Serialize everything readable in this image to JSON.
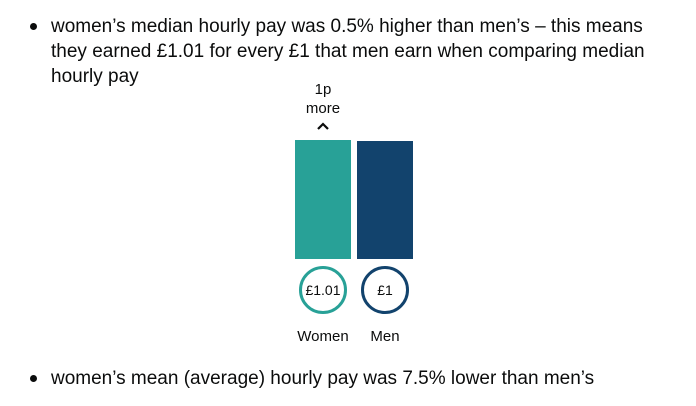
{
  "bullets": [
    "women’s median hourly pay was 0.5% higher than men’s – this means they earned £1.01 for every £1 that men earn when comparing median hourly pay",
    "women’s mean (average) hourly pay was 7.5% lower than men’s"
  ],
  "chart_data": {
    "type": "bar",
    "categories": [
      "Women",
      "Men"
    ],
    "values": [
      1.01,
      1.0
    ],
    "value_labels": [
      "£1.01",
      "£1"
    ],
    "difference_amount": "1p",
    "difference_word": "more",
    "colors": [
      "#28a197",
      "#12436d"
    ],
    "ylim": [
      0,
      1.05
    ]
  }
}
